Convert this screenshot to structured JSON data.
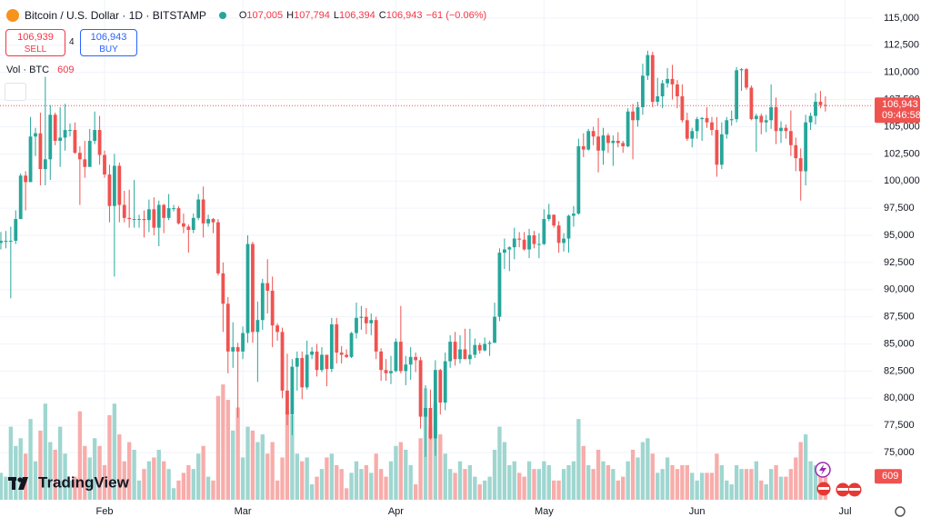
{
  "chart_data": {
    "type": "candlestick",
    "symbol": "Bitcoin / U.S. Dollar · 1D · BITSTAMP",
    "ohlc_legend": [
      {
        "key": "O",
        "value": "107,005"
      },
      {
        "key": "H",
        "value": "107,794"
      },
      {
        "key": "L",
        "value": "106,394"
      },
      {
        "key": "C",
        "value": "106,943"
      }
    ],
    "change_label": "−61 (−0.06%)",
    "sell": {
      "price": "106,939",
      "label": "SELL"
    },
    "spread": "4",
    "buy": {
      "price": "106,943",
      "label": "BUY"
    },
    "volume_title": "Vol · BTC",
    "last_price_label": "106,943",
    "countdown": "09:46:58",
    "brand": "TradingView",
    "up_color": "#26a69a",
    "down_color": "#ef5350",
    "volume_up_color": "#9fd6d0",
    "volume_down_color": "#f7adab",
    "grid": true,
    "xlim": [
      -0.18,
      176.6
    ],
    "xticks": [
      {
        "value": 21,
        "label": "Feb"
      },
      {
        "value": 49,
        "label": "Mar"
      },
      {
        "value": 80,
        "label": "Apr"
      },
      {
        "value": 110,
        "label": "May"
      },
      {
        "value": 141,
        "label": "Jun"
      },
      {
        "value": 171,
        "label": "Jul"
      }
    ],
    "ylim": [
      70650,
      116670
    ],
    "yticks": [
      {
        "value": 75000,
        "label": "75,000"
      },
      {
        "value": 77500,
        "label": "77,500"
      },
      {
        "value": 80000,
        "label": "80,000"
      },
      {
        "value": 82500,
        "label": "82,500"
      },
      {
        "value": 85000,
        "label": "85,000"
      },
      {
        "value": 87500,
        "label": "87,500"
      },
      {
        "value": 90000,
        "label": "90,000"
      },
      {
        "value": 92500,
        "label": "92,500"
      },
      {
        "value": 95000,
        "label": "95,000"
      },
      {
        "value": 97500,
        "label": "97,500"
      },
      {
        "value": 100000,
        "label": "100,000"
      },
      {
        "value": 102500,
        "label": "102,500"
      },
      {
        "value": 105000,
        "label": "105,000"
      },
      {
        "value": 107500,
        "label": "107,500"
      },
      {
        "value": 110000,
        "label": "110,000"
      },
      {
        "value": 112500,
        "label": "112,500"
      },
      {
        "value": 115000,
        "label": "115,000"
      }
    ],
    "volume_lim": [
      0,
      13000
    ],
    "ohlc": [
      [
        94300,
        95300,
        93700,
        94500
      ],
      [
        94500,
        95400,
        93800,
        94500
      ],
      [
        94500,
        95800,
        89200,
        94500
      ],
      [
        94500,
        97300,
        94200,
        96500
      ],
      [
        96500,
        100700,
        96500,
        100500
      ],
      [
        100500,
        100900,
        97300,
        99900
      ],
      [
        99900,
        105900,
        99900,
        104100
      ],
      [
        104100,
        104900,
        102300,
        104400
      ],
      [
        104400,
        106300,
        99600,
        101100
      ],
      [
        101100,
        109600,
        99600,
        102000
      ],
      [
        102000,
        107000,
        100100,
        106100
      ],
      [
        106100,
        106300,
        103300,
        103700
      ],
      [
        103700,
        106800,
        101300,
        104000
      ],
      [
        104000,
        107100,
        102800,
        104700
      ],
      [
        104700,
        105300,
        104100,
        104700
      ],
      [
        104700,
        105400,
        102500,
        102600
      ],
      [
        102600,
        103200,
        97800,
        102000
      ],
      [
        102000,
        103700,
        100300,
        101300
      ],
      [
        101300,
        104800,
        101300,
        103700
      ],
      [
        103700,
        106400,
        103400,
        104700
      ],
      [
        104700,
        106000,
        101500,
        102400
      ],
      [
        102400,
        102800,
        100300,
        100600
      ],
      [
        100600,
        101500,
        96200,
        97700
      ],
      [
        97700,
        102500,
        91200,
        101400
      ],
      [
        101400,
        101700,
        96200,
        97800
      ],
      [
        97800,
        99100,
        96200,
        96600
      ],
      [
        96600,
        99200,
        95700,
        96500
      ],
      [
        96500,
        100100,
        95700,
        96500
      ],
      [
        96500,
        96900,
        95700,
        96500
      ],
      [
        96500,
        97300,
        94800,
        96400
      ],
      [
        96400,
        98300,
        95300,
        97400
      ],
      [
        97400,
        98500,
        95000,
        95700
      ],
      [
        95700,
        98200,
        94000,
        97800
      ],
      [
        97800,
        97900,
        95200,
        96600
      ],
      [
        96600,
        98800,
        96400,
        97500
      ],
      [
        97500,
        97800,
        97200,
        97500
      ],
      [
        97500,
        97700,
        96000,
        96100
      ],
      [
        96100,
        97000,
        95200,
        95800
      ],
      [
        95800,
        96000,
        93400,
        95500
      ],
      [
        95500,
        97000,
        95200,
        96600
      ],
      [
        96600,
        98800,
        96400,
        98300
      ],
      [
        98300,
        99500,
        94800,
        96100
      ],
      [
        96100,
        96900,
        95800,
        96500
      ],
      [
        96500,
        96600,
        95200,
        96200
      ],
      [
        96200,
        96500,
        91300,
        91500
      ],
      [
        91500,
        92500,
        86100,
        88700
      ],
      [
        88700,
        89300,
        82300,
        84300
      ],
      [
        84300,
        87000,
        82800,
        84700
      ],
      [
        84700,
        85100,
        78200,
        84300
      ],
      [
        84300,
        86600,
        83600,
        86000
      ],
      [
        86000,
        95000,
        85100,
        94200
      ],
      [
        94200,
        94400,
        85100,
        86100
      ],
      [
        86100,
        88900,
        81500,
        87200
      ],
      [
        87200,
        91000,
        86300,
        90600
      ],
      [
        90600,
        92800,
        87800,
        89900
      ],
      [
        89900,
        91200,
        84700,
        86700
      ],
      [
        86700,
        86900,
        85300,
        86100
      ],
      [
        86100,
        86500,
        80000,
        80700
      ],
      [
        80700,
        84100,
        77500,
        78500
      ],
      [
        78500,
        83600,
        76600,
        82900
      ],
      [
        82900,
        84300,
        80700,
        83700
      ],
      [
        83700,
        84300,
        79900,
        81000
      ],
      [
        81000,
        85300,
        80800,
        84000
      ],
      [
        84000,
        84700,
        83600,
        84300
      ],
      [
        84300,
        85000,
        82000,
        82600
      ],
      [
        82600,
        84700,
        82400,
        84000
      ],
      [
        84000,
        84000,
        81100,
        82700
      ],
      [
        82700,
        87400,
        82400,
        86800
      ],
      [
        86800,
        87400,
        83200,
        84200
      ],
      [
        84200,
        84800,
        83200,
        84000
      ],
      [
        84000,
        84500,
        83700,
        83800
      ],
      [
        83800,
        86100,
        83700,
        86000
      ],
      [
        86000,
        88800,
        85500,
        87400
      ],
      [
        87400,
        88500,
        86300,
        87500
      ],
      [
        87500,
        88300,
        85900,
        86900
      ],
      [
        86900,
        87800,
        85800,
        87200
      ],
      [
        87200,
        87500,
        83600,
        84300
      ],
      [
        84300,
        84600,
        81600,
        82600
      ],
      [
        82600,
        83600,
        81600,
        82300
      ],
      [
        82300,
        83900,
        81300,
        82500
      ],
      [
        82500,
        85500,
        82400,
        85200
      ],
      [
        85200,
        88500,
        82300,
        82500
      ],
      [
        82500,
        83900,
        81200,
        83100
      ],
      [
        83100,
        84700,
        81700,
        83800
      ],
      [
        83800,
        84200,
        82400,
        83500
      ],
      [
        83500,
        83800,
        77200,
        78300
      ],
      [
        78300,
        81200,
        74600,
        79100
      ],
      [
        79100,
        80800,
        76200,
        76300
      ],
      [
        76300,
        83500,
        74700,
        82600
      ],
      [
        82600,
        82700,
        78500,
        79600
      ],
      [
        79600,
        84200,
        78900,
        83400
      ],
      [
        83400,
        85800,
        82800,
        85200
      ],
      [
        85200,
        86100,
        83000,
        83600
      ],
      [
        83600,
        85800,
        83200,
        84500
      ],
      [
        84500,
        86400,
        83600,
        83600
      ],
      [
        83600,
        86400,
        83100,
        84000
      ],
      [
        84000,
        85500,
        83700,
        84900
      ],
      [
        84900,
        85100,
        84100,
        84400
      ],
      [
        84400,
        85600,
        84300,
        85000
      ],
      [
        85000,
        85300,
        83900,
        85100
      ],
      [
        85100,
        88800,
        85100,
        87500
      ],
      [
        87500,
        93800,
        87100,
        93400
      ],
      [
        93400,
        94700,
        91900,
        93700
      ],
      [
        93700,
        94000,
        91700,
        93900
      ],
      [
        93900,
        95700,
        92800,
        94700
      ],
      [
        94700,
        95300,
        93900,
        94600
      ],
      [
        94600,
        95300,
        93600,
        93700
      ],
      [
        93700,
        95600,
        92900,
        95000
      ],
      [
        95000,
        95400,
        93800,
        94200
      ],
      [
        94200,
        95200,
        92900,
        94200
      ],
      [
        94200,
        97400,
        94100,
        96500
      ],
      [
        96500,
        97900,
        96300,
        96900
      ],
      [
        96900,
        96900,
        95700,
        95900
      ],
      [
        95900,
        96300,
        93400,
        94300
      ],
      [
        94300,
        95200,
        93500,
        94700
      ],
      [
        94700,
        96900,
        93400,
        96800
      ],
      [
        96800,
        97700,
        95800,
        97000
      ],
      [
        97000,
        103900,
        96900,
        103200
      ],
      [
        103200,
        104400,
        102200,
        102900
      ],
      [
        102900,
        104800,
        102800,
        104600
      ],
      [
        104600,
        105000,
        103300,
        104100
      ],
      [
        104100,
        105800,
        100800,
        102800
      ],
      [
        102800,
        104900,
        101500,
        104200
      ],
      [
        104200,
        104400,
        102600,
        103500
      ],
      [
        103500,
        104200,
        101400,
        103700
      ],
      [
        103700,
        104500,
        103100,
        103500
      ],
      [
        103500,
        103700,
        102600,
        103200
      ],
      [
        103200,
        106700,
        103100,
        106400
      ],
      [
        106400,
        107100,
        102000,
        105600
      ],
      [
        105600,
        107300,
        105000,
        106800
      ],
      [
        106800,
        110800,
        106100,
        109700
      ],
      [
        109700,
        112000,
        109300,
        111600
      ],
      [
        111600,
        111900,
        106800,
        107300
      ],
      [
        107300,
        109500,
        106900,
        107800
      ],
      [
        107800,
        109300,
        106700,
        109000
      ],
      [
        109000,
        110400,
        108600,
        109400
      ],
      [
        109400,
        110700,
        107500,
        108900
      ],
      [
        108900,
        109300,
        106700,
        107800
      ],
      [
        107800,
        108900,
        105400,
        105600
      ],
      [
        105600,
        106300,
        103700,
        103900
      ],
      [
        103900,
        104900,
        103100,
        104600
      ],
      [
        104600,
        105900,
        103900,
        105700
      ],
      [
        105700,
        105900,
        103700,
        105800
      ],
      [
        105800,
        106800,
        104900,
        105400
      ],
      [
        105400,
        105900,
        104200,
        104700
      ],
      [
        104700,
        105900,
        100400,
        101500
      ],
      [
        101500,
        105400,
        101100,
        104300
      ],
      [
        104300,
        105900,
        103900,
        105600
      ],
      [
        105600,
        106500,
        105100,
        105700
      ],
      [
        105700,
        110500,
        105400,
        110200
      ],
      [
        110200,
        110400,
        108300,
        110300
      ],
      [
        110300,
        110400,
        108400,
        108600
      ],
      [
        108600,
        108800,
        105600,
        105700
      ],
      [
        105700,
        106200,
        102700,
        106000
      ],
      [
        106000,
        106200,
        104300,
        105400
      ],
      [
        105400,
        106100,
        104500,
        105600
      ],
      [
        105600,
        108900,
        104800,
        106800
      ],
      [
        106800,
        107700,
        103400,
        104600
      ],
      [
        104600,
        105500,
        103500,
        104900
      ],
      [
        104900,
        105200,
        103900,
        104600
      ],
      [
        104600,
        106500,
        102300,
        103300
      ],
      [
        103300,
        104000,
        100900,
        102100
      ],
      [
        102100,
        103000,
        98200,
        100900
      ],
      [
        100900,
        106100,
        99600,
        105400
      ],
      [
        105400,
        106300,
        104700,
        106000
      ],
      [
        106000,
        108100,
        105200,
        107300
      ],
      [
        107300,
        108300,
        106700,
        107000
      ],
      [
        107005,
        107794,
        106394,
        106943
      ]
    ],
    "volume": [
      700,
      600,
      1900,
      1400,
      1600,
      1200,
      2100,
      1000,
      1800,
      2500,
      1500,
      1300,
      1900,
      1200,
      500,
      600,
      2300,
      1400,
      1100,
      1600,
      1400,
      900,
      2200,
      2500,
      1700,
      1000,
      1500,
      1300,
      500,
      800,
      1000,
      1100,
      1300,
      1000,
      800,
      300,
      500,
      700,
      900,
      800,
      1200,
      1400,
      600,
      500,
      2700,
      3000,
      2600,
      1800,
      2400,
      1100,
      1900,
      1800,
      1500,
      1700,
      1200,
      1500,
      500,
      1100,
      2300,
      2200,
      1200,
      1000,
      1100,
      400,
      600,
      800,
      1100,
      1200,
      900,
      800,
      300,
      700,
      1000,
      800,
      900,
      700,
      1200,
      800,
      600,
      1000,
      1400,
      1500,
      1300,
      900,
      400,
      1600,
      2900,
      1900,
      2500,
      1700,
      1200,
      800,
      700,
      1000,
      800,
      900,
      600,
      400,
      500,
      600,
      1300,
      1900,
      1500,
      900,
      1000,
      700,
      600,
      1000,
      800,
      800,
      1000,
      900,
      500,
      500,
      800,
      900,
      1000,
      2100,
      1400,
      900,
      800,
      1300,
      1000,
      900,
      800,
      500,
      600,
      1000,
      1300,
      1100,
      1500,
      1600,
      1200,
      700,
      800,
      1100,
      900,
      800,
      900,
      900,
      700,
      500,
      700,
      700,
      700,
      1200,
      900,
      500,
      400,
      900,
      800,
      800,
      800,
      1000,
      500,
      400,
      800,
      900,
      600,
      600,
      800,
      1100,
      1500,
      1700,
      1000,
      900,
      700,
      609
    ]
  }
}
